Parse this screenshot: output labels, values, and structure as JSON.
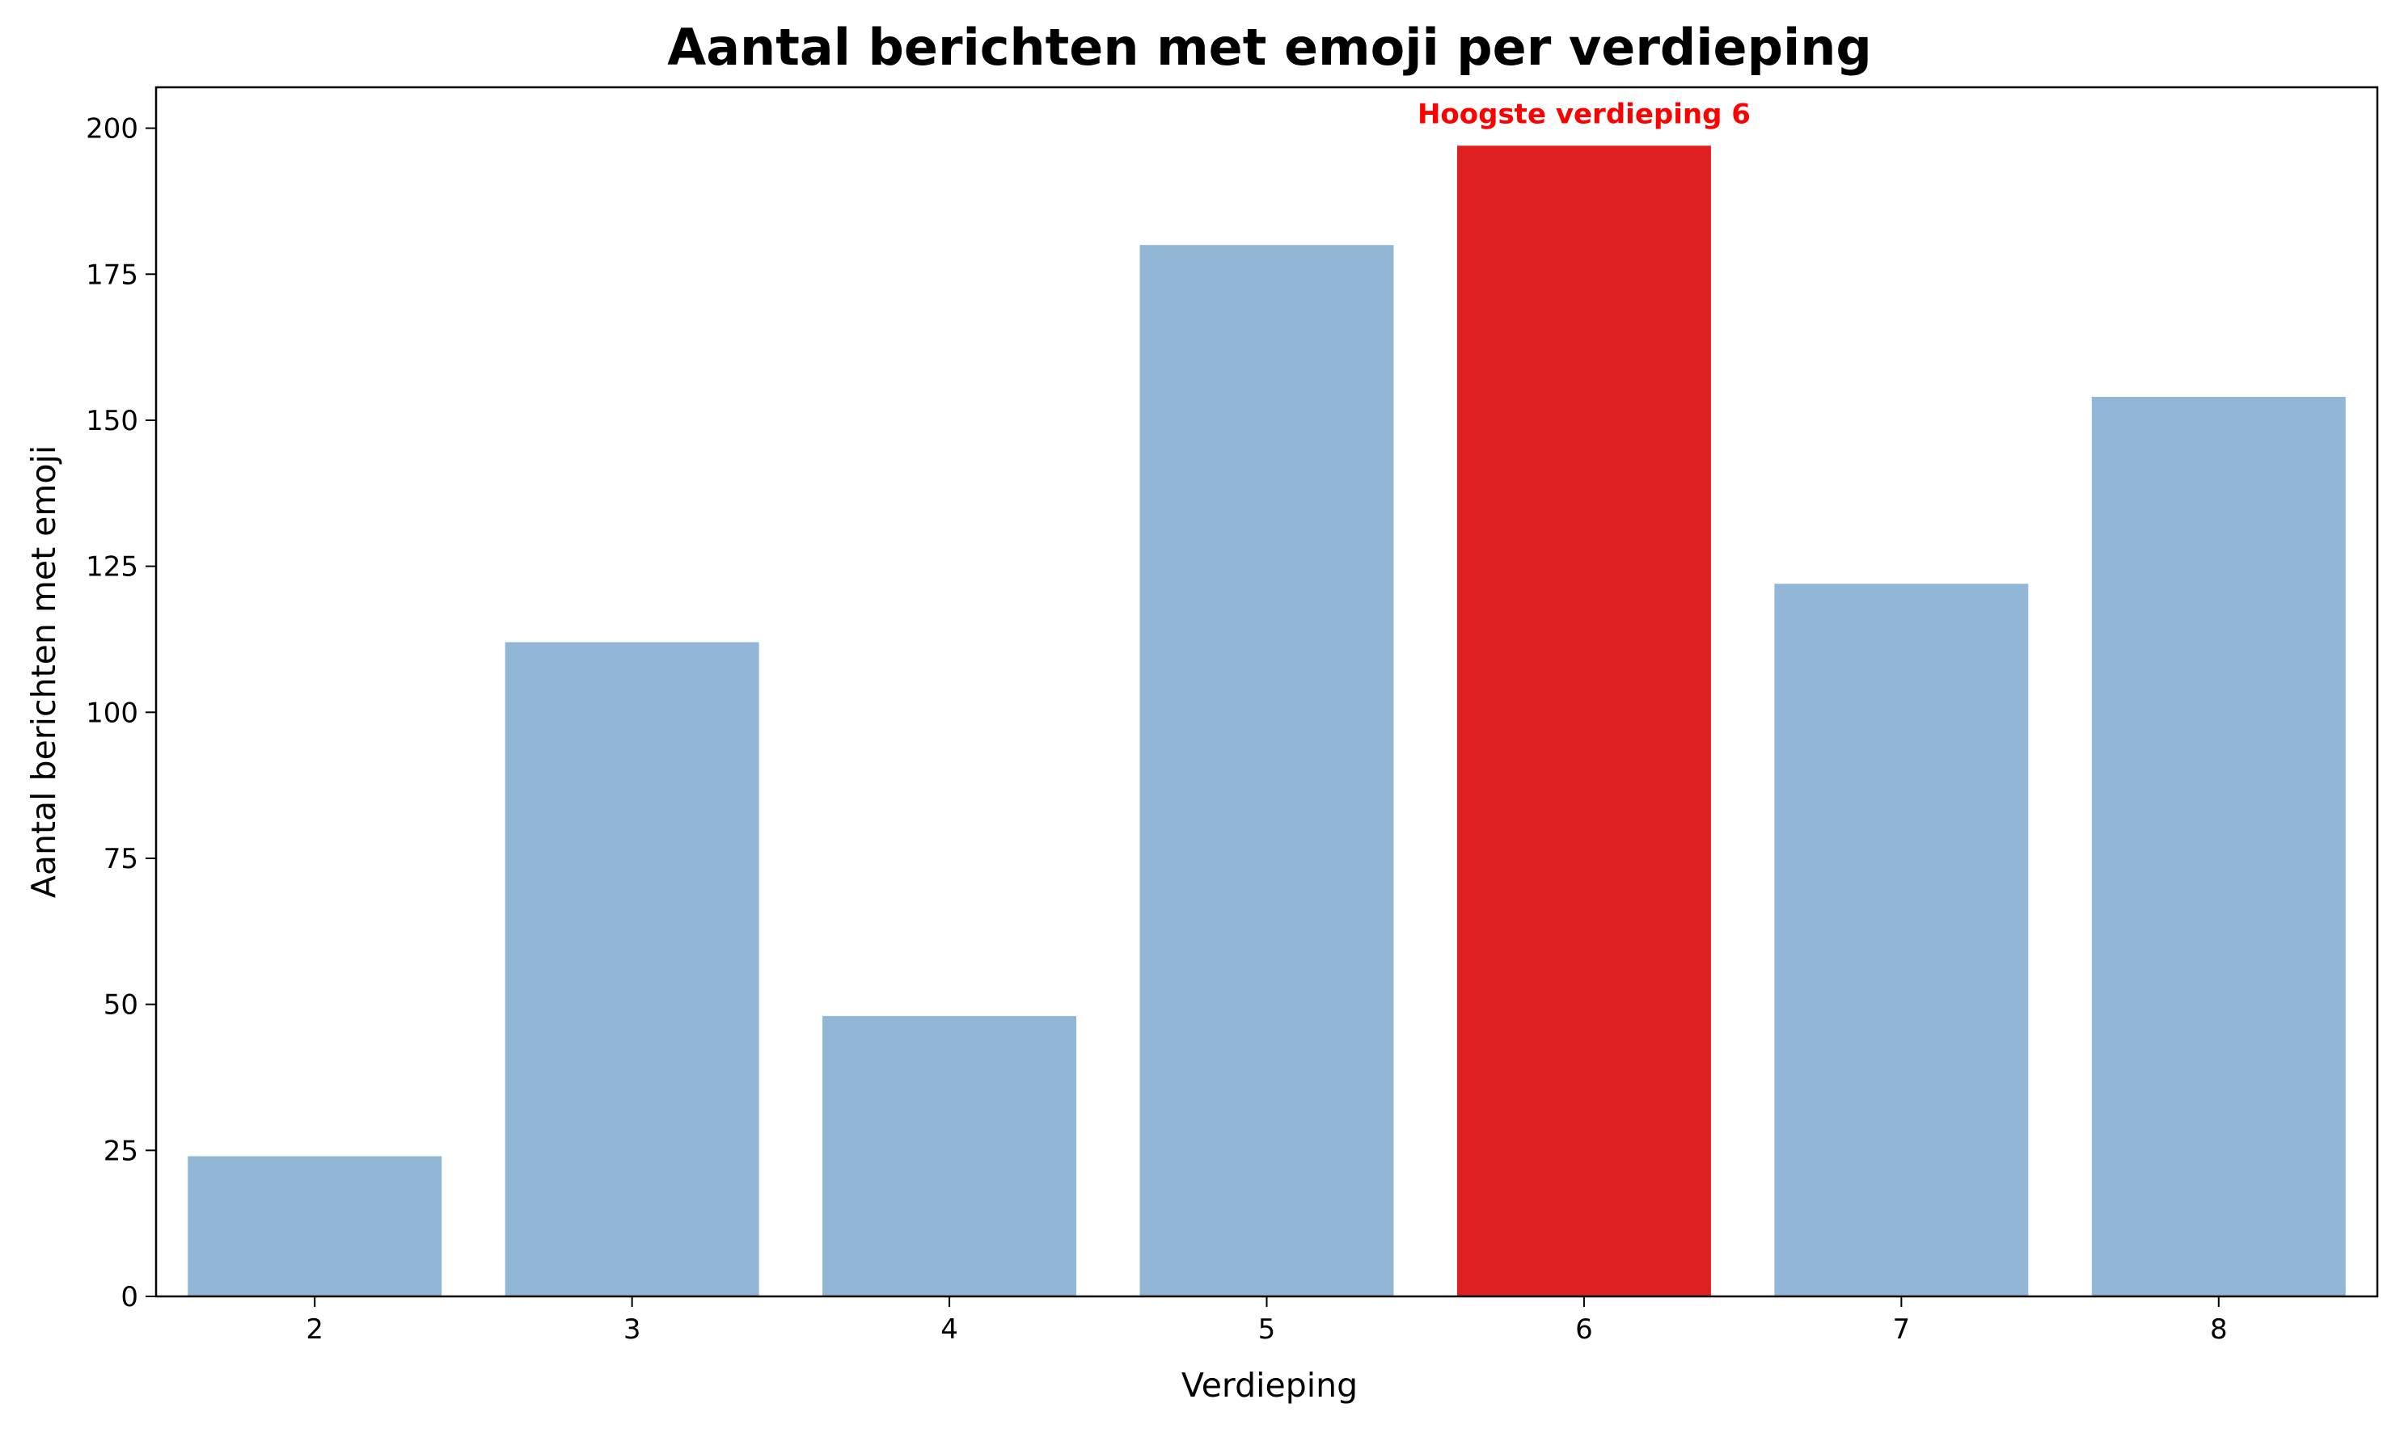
{
  "chart_data": {
    "type": "bar",
    "title": "Aantal berichten met emoji per verdieping",
    "xlabel": "Verdieping",
    "ylabel": "Aantal berichten met emoji",
    "categories": [
      "2",
      "3",
      "4",
      "5",
      "6",
      "7",
      "8"
    ],
    "values": [
      24,
      112,
      48,
      180,
      197,
      122,
      154
    ],
    "ylim": [
      0,
      207
    ],
    "yticks": [
      0,
      25,
      50,
      75,
      100,
      125,
      150,
      175,
      200
    ],
    "grid": false,
    "legend": "none",
    "highlight": {
      "category": "6",
      "label": "Hoogste verdieping 6"
    },
    "colors": {
      "bar": "#92b6d5",
      "highlight": "#de2020",
      "annotation_text": "#ff0000",
      "axis": "#000000"
    }
  }
}
